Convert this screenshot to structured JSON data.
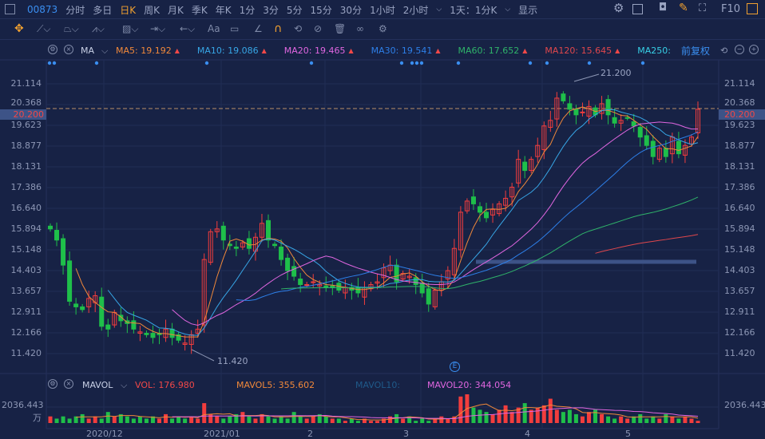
{
  "header": {
    "code": "00873",
    "tabs": [
      "分时",
      "多日",
      "日K",
      "周K",
      "月K",
      "季K",
      "年K",
      "1分",
      "3分",
      "5分",
      "15分",
      "30分",
      "1小时",
      "2小时"
    ],
    "active_tab": "日K",
    "period_select": "1天：1分K",
    "display": "显示",
    "f10": "F10"
  },
  "ma_legend": {
    "name": "MA",
    "items": [
      {
        "label": "MA5: 19.192",
        "color": "#f0883a"
      },
      {
        "label": "MA10: 19.086",
        "color": "#37a6e6"
      },
      {
        "label": "MA20: 19.465",
        "color": "#e066e0"
      },
      {
        "label": "MA30: 19.541",
        "color": "#2d7fe8"
      },
      {
        "label": "MA60: 17.652",
        "color": "#2fb36a"
      },
      {
        "label": "MA120: 15.645",
        "color": "#e0474c"
      },
      {
        "label": "MA250:",
        "color": "#37d0e6"
      }
    ],
    "adjust": "前复权"
  },
  "price_axis": {
    "ticks": [
      "21.114",
      "20.368",
      "19.623",
      "18.877",
      "18.131",
      "17.386",
      "16.640",
      "15.894",
      "15.148",
      "14.403",
      "13.657",
      "12.911",
      "12.166",
      "11.420"
    ],
    "current": "20.200",
    "max_label": "21.200",
    "min_label": "11.420"
  },
  "vol_legend": {
    "name": "MAVOL",
    "vol": "VOL: 176.980",
    "mavol5": "MAVOL5: 355.602",
    "mavol10": "MAVOL10:",
    "mavol20": "MAVOL20: 344.054",
    "max": "2036.443",
    "unit": "万"
  },
  "dates": [
    "2020/12",
    "2021/01",
    "2",
    "3",
    "4",
    "5"
  ],
  "kline": {
    "closes": [
      15.9,
      15.5,
      14.6,
      13.3,
      13.1,
      13.0,
      13.4,
      13.5,
      12.4,
      12.3,
      12.9,
      12.6,
      12.5,
      12.3,
      12.2,
      12.1,
      12.0,
      12.1,
      12.3,
      12.0,
      11.9,
      11.8,
      12.1,
      12.3,
      14.8,
      15.8,
      15.9,
      15.5,
      15.3,
      15.2,
      15.4,
      15.2,
      15.6,
      16.1,
      15.5,
      15.3,
      14.8,
      14.4,
      14.2,
      13.9,
      13.9,
      14.0,
      13.9,
      13.8,
      13.8,
      13.7,
      13.8,
      13.7,
      13.6,
      13.8,
      13.9,
      14.0,
      14.5,
      14.6,
      14.0,
      14.3,
      14.2,
      13.9,
      13.6,
      13.2,
      13.7,
      14.0,
      14.4,
      15.2,
      16.5,
      16.9,
      16.8,
      16.5,
      16.3,
      16.6,
      16.8,
      17.0,
      17.4,
      18.4,
      18.0,
      18.4,
      18.9,
      19.6,
      19.8,
      20.6,
      20.5,
      20.2,
      20.0,
      20.1,
      20.3,
      20.0,
      20.4,
      20.0,
      19.7,
      19.8,
      19.9,
      19.6,
      19.2,
      18.9,
      18.5,
      18.8,
      18.5,
      19.2,
      18.6,
      18.9,
      19.2,
      20.2
    ],
    "vols": [
      3,
      2,
      3,
      2,
      3,
      4,
      2,
      3,
      2,
      5,
      3,
      4,
      3,
      2,
      3,
      2,
      3,
      2,
      4,
      2,
      3,
      2,
      3,
      2,
      9,
      4,
      3,
      2,
      3,
      4,
      5,
      3,
      2,
      4,
      3,
      2,
      3,
      2,
      5,
      3,
      2,
      3,
      4,
      3,
      2,
      2,
      1,
      2,
      1,
      2,
      1,
      1,
      2,
      3,
      4,
      2,
      3,
      1,
      2,
      1,
      2,
      3,
      2,
      3,
      12,
      13,
      7,
      6,
      5,
      4,
      6,
      8,
      5,
      7,
      9,
      6,
      7,
      8,
      11,
      6,
      5,
      6,
      4,
      3,
      5,
      6,
      4,
      3,
      2,
      3,
      2,
      3,
      4,
      2,
      3,
      2,
      4,
      3,
      2,
      3,
      2,
      1
    ]
  }
}
